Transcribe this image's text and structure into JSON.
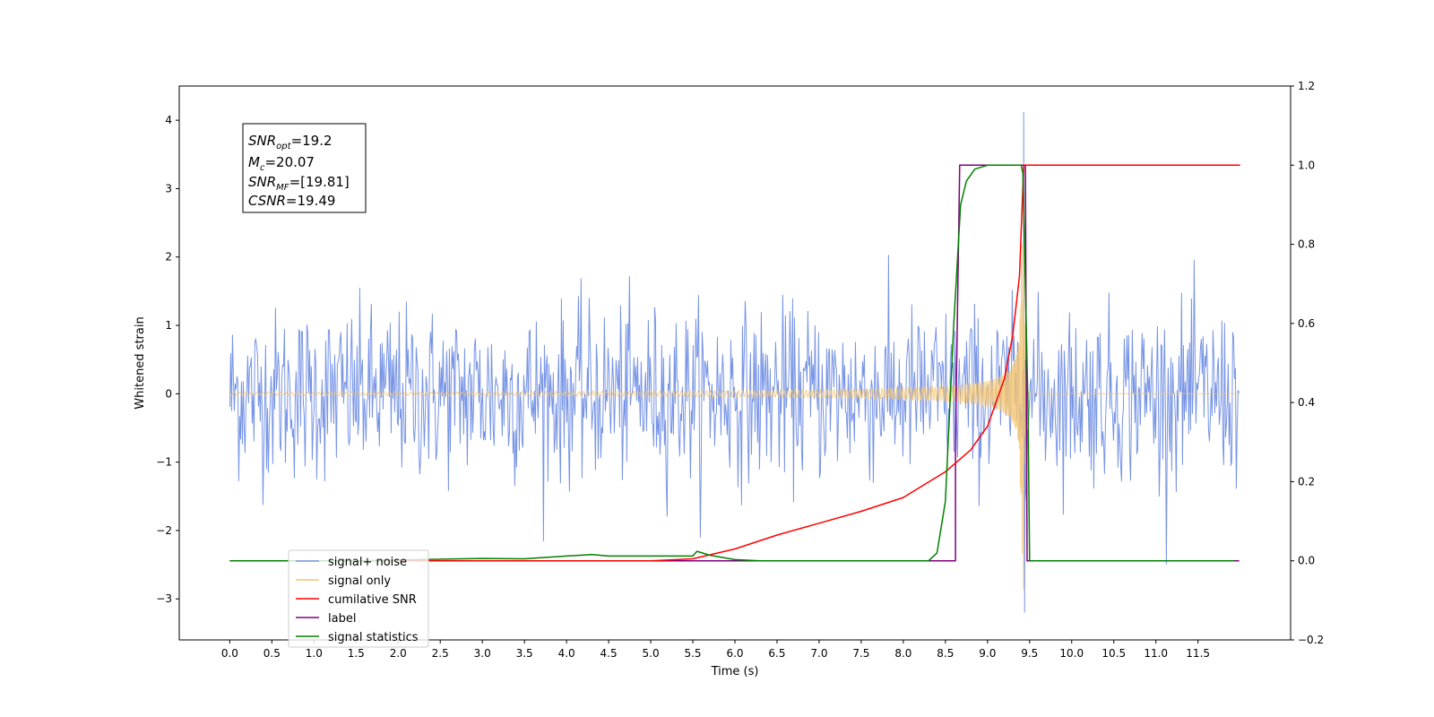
{
  "chart_data": {
    "type": "line",
    "title": "",
    "xlabel": "Time (s)",
    "ylabel": "Whitened strain",
    "xlim": [
      -0.6,
      12.6
    ],
    "ylim": [
      -3.6,
      4.5
    ],
    "y2lim": [
      -0.2,
      1.2
    ],
    "x_ticks": [
      "0.0",
      "0.5",
      "1.0",
      "1.5",
      "2.0",
      "2.5",
      "3.0",
      "3.5",
      "4.0",
      "4.5",
      "5.0",
      "5.5",
      "6.0",
      "6.5",
      "7.0",
      "7.5",
      "8.0",
      "8.5",
      "9.0",
      "9.5",
      "10.0",
      "10.5",
      "11.0",
      "11.5"
    ],
    "y_ticks": [
      "4",
      "3",
      "2",
      "1",
      "0",
      "−1",
      "−2",
      "−3"
    ],
    "y2_ticks": [
      "1.2",
      "1.0",
      "0.8",
      "0.6",
      "0.4",
      "0.2",
      "0.0",
      "−0.2"
    ],
    "grid": false,
    "legend_position": "lower-left",
    "annotation": {
      "snr_opt": {
        "base": "SNR",
        "sub": "opt",
        "value": "=19.2"
      },
      "mc": {
        "base": "M",
        "sub": "c",
        "value": "=20.07"
      },
      "snr_mf": {
        "base": "SNR",
        "sub": "MF",
        "value": "=[19.81]"
      },
      "csnr": {
        "base": "CSNR",
        "value": "=19.49"
      }
    },
    "series": [
      {
        "name": "signal+ noise",
        "color": "#7895e6",
        "axis": "left",
        "kind": "gaussian noise band, amplitude about ±1.6 with spikes to ±2.9",
        "max_peak": {
          "x": 9.43,
          "y": 4.12
        },
        "min_peak": {
          "x": 9.43,
          "y": -3.2
        }
      },
      {
        "name": "signal only",
        "color": "#f5c46e",
        "axis": "left",
        "kind": "chirp, amplitude growing to peak near 9.43 s",
        "x_start": 0.0,
        "x_end": 11.99,
        "merger": 9.43,
        "peak_amplitude": 2.9
      },
      {
        "name": "cumilative SNR",
        "color": "#ff0000",
        "axis": "right",
        "x": [
          0.0,
          5.0,
          5.5,
          6.0,
          6.5,
          7.0,
          7.5,
          8.0,
          8.5,
          8.8,
          9.0,
          9.2,
          9.3,
          9.38,
          9.43,
          9.45,
          12.0
        ],
        "y": [
          0.0,
          0.0,
          0.005,
          0.03,
          0.065,
          0.095,
          0.125,
          0.16,
          0.225,
          0.28,
          0.34,
          0.46,
          0.57,
          0.72,
          1.0,
          1.0,
          1.0
        ]
      },
      {
        "name": "label",
        "color": "#800080",
        "axis": "right",
        "x": [
          0.0,
          8.62,
          8.62,
          8.67,
          9.45,
          9.47,
          11.99
        ],
        "y": [
          0.0,
          0.0,
          0.3,
          1.0,
          1.0,
          0.0,
          0.0
        ]
      },
      {
        "name": "signal statistics",
        "color": "#008000",
        "axis": "right",
        "x": [
          0.0,
          1.5,
          2.0,
          3.0,
          3.5,
          4.0,
          4.3,
          4.5,
          5.0,
          5.5,
          5.55,
          5.7,
          6.0,
          6.3,
          8.3,
          8.4,
          8.5,
          8.6,
          8.68,
          8.75,
          8.85,
          9.0,
          9.3,
          9.4,
          9.42,
          9.48,
          9.5,
          11.93
        ],
        "y": [
          0.0,
          0.0,
          0.002,
          0.006,
          0.005,
          0.012,
          0.016,
          0.012,
          0.012,
          0.012,
          0.024,
          0.014,
          0.003,
          0.0,
          0.0,
          0.02,
          0.15,
          0.6,
          0.9,
          0.96,
          0.99,
          1.0,
          1.0,
          1.0,
          0.98,
          0.4,
          0.0,
          0.0
        ]
      }
    ],
    "legend": [
      "signal+ noise",
      "signal only",
      "cumilative SNR",
      "label",
      "signal statistics"
    ]
  }
}
